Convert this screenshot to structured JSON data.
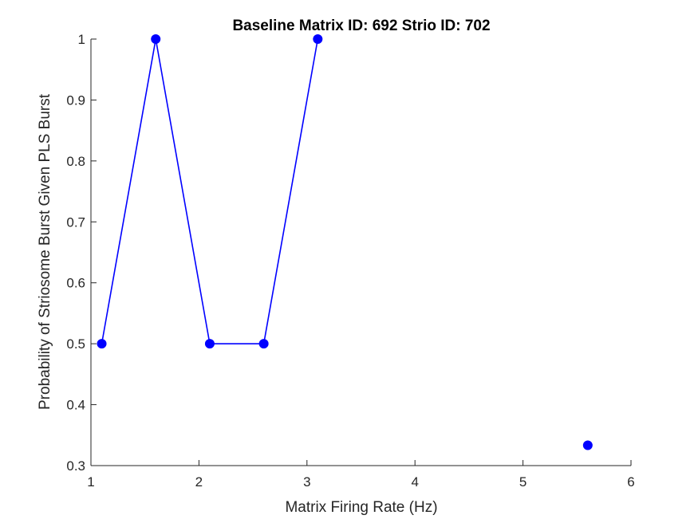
{
  "chart_data": {
    "type": "line",
    "title": "Baseline Matrix ID: 692 Strio ID: 702",
    "xlabel": "Matrix Firing Rate (Hz)",
    "ylabel": "Probability of Striosome Burst Given PLS Burst",
    "xlim": [
      1,
      6
    ],
    "ylim": [
      0.3,
      1
    ],
    "xticks": [
      "1",
      "2",
      "3",
      "4",
      "5",
      "6"
    ],
    "yticks": [
      "0.3",
      "0.4",
      "0.5",
      "0.6",
      "0.7",
      "0.8",
      "0.9",
      "1"
    ],
    "grid": false,
    "series": [
      {
        "color": "#0000ff",
        "marker": "circle",
        "x": [
          1.1,
          1.6,
          2.1,
          2.6,
          3.1,
          5.6
        ],
        "y": [
          0.5,
          1.0,
          0.5,
          0.5,
          1.0,
          0.3333
        ],
        "connected_segments": [
          [
            0,
            4
          ]
        ]
      }
    ]
  }
}
